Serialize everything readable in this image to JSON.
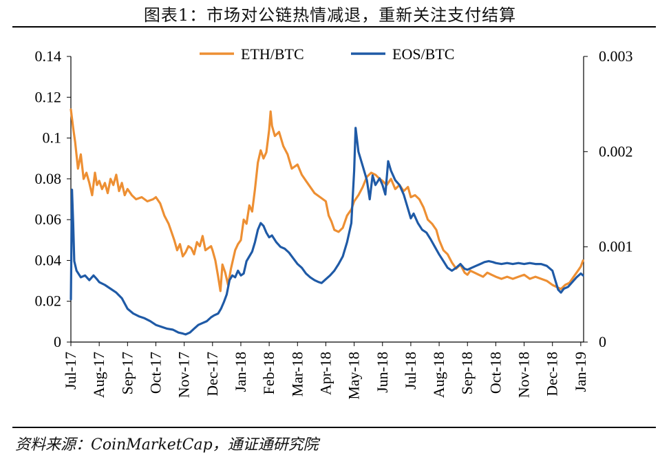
{
  "title": "图表1：市场对公链热情减退，重新关注支付结算",
  "source": "资料来源：CoinMarketCap，通证通研究院",
  "chart_data": {
    "type": "line",
    "x_tick_labels": [
      "Jul-17",
      "Aug-17",
      "Sep-17",
      "Oct-17",
      "Nov-17",
      "Dec-17",
      "Jan-18",
      "Feb-18",
      "Mar-18",
      "Apr-18",
      "May-18",
      "Jun-18",
      "Jul-18",
      "Aug-18",
      "Sep-18",
      "Oct-18",
      "Nov-18",
      "Dec-18",
      "Jan-19"
    ],
    "y_left": {
      "ylim": [
        0,
        0.14
      ],
      "ticks": [
        0,
        0.02,
        0.04,
        0.06,
        0.08,
        0.1,
        0.12,
        0.14
      ],
      "tick_labels": [
        "0",
        "0.02",
        "0.04",
        "0.06",
        "0.08",
        "0.1",
        "0.12",
        "0.14"
      ]
    },
    "y_right": {
      "ylim": [
        0,
        0.003
      ],
      "ticks": [
        0,
        0.001,
        0.002,
        0.003
      ],
      "tick_labels": [
        "0",
        "0.001",
        "0.002",
        "0.003"
      ]
    },
    "legend_position": "top-center",
    "grid": false,
    "series": [
      {
        "name": "ETH/BTC",
        "axis": "left",
        "color": "#ED8F33",
        "points": [
          [
            0.0,
            0.114
          ],
          [
            0.08,
            0.105
          ],
          [
            0.15,
            0.098
          ],
          [
            0.25,
            0.085
          ],
          [
            0.35,
            0.092
          ],
          [
            0.45,
            0.08
          ],
          [
            0.55,
            0.083
          ],
          [
            0.65,
            0.078
          ],
          [
            0.75,
            0.072
          ],
          [
            0.85,
            0.083
          ],
          [
            0.92,
            0.077
          ],
          [
            1.0,
            0.079
          ],
          [
            1.1,
            0.075
          ],
          [
            1.2,
            0.078
          ],
          [
            1.3,
            0.073
          ],
          [
            1.4,
            0.08
          ],
          [
            1.5,
            0.077
          ],
          [
            1.6,
            0.082
          ],
          [
            1.7,
            0.074
          ],
          [
            1.8,
            0.078
          ],
          [
            1.9,
            0.072
          ],
          [
            2.0,
            0.075
          ],
          [
            2.15,
            0.072
          ],
          [
            2.3,
            0.07
          ],
          [
            2.5,
            0.071
          ],
          [
            2.7,
            0.069
          ],
          [
            2.9,
            0.07
          ],
          [
            3.0,
            0.071
          ],
          [
            3.15,
            0.068
          ],
          [
            3.3,
            0.062
          ],
          [
            3.45,
            0.058
          ],
          [
            3.55,
            0.054
          ],
          [
            3.65,
            0.05
          ],
          [
            3.75,
            0.045
          ],
          [
            3.85,
            0.048
          ],
          [
            3.95,
            0.042
          ],
          [
            4.05,
            0.044
          ],
          [
            4.15,
            0.047
          ],
          [
            4.25,
            0.046
          ],
          [
            4.35,
            0.043
          ],
          [
            4.45,
            0.049
          ],
          [
            4.55,
            0.047
          ],
          [
            4.65,
            0.052
          ],
          [
            4.75,
            0.045
          ],
          [
            4.85,
            0.046
          ],
          [
            4.95,
            0.047
          ],
          [
            5.0,
            0.045
          ],
          [
            5.1,
            0.04
          ],
          [
            5.2,
            0.032
          ],
          [
            5.28,
            0.025
          ],
          [
            5.35,
            0.038
          ],
          [
            5.45,
            0.034
          ],
          [
            5.55,
            0.028
          ],
          [
            5.65,
            0.036
          ],
          [
            5.8,
            0.045
          ],
          [
            5.9,
            0.048
          ],
          [
            6.0,
            0.05
          ],
          [
            6.1,
            0.06
          ],
          [
            6.2,
            0.058
          ],
          [
            6.3,
            0.067
          ],
          [
            6.4,
            0.064
          ],
          [
            6.5,
            0.075
          ],
          [
            6.6,
            0.088
          ],
          [
            6.7,
            0.094
          ],
          [
            6.8,
            0.09
          ],
          [
            6.9,
            0.093
          ],
          [
            7.0,
            0.104
          ],
          [
            7.05,
            0.113
          ],
          [
            7.1,
            0.106
          ],
          [
            7.2,
            0.101
          ],
          [
            7.35,
            0.103
          ],
          [
            7.5,
            0.096
          ],
          [
            7.65,
            0.092
          ],
          [
            7.8,
            0.085
          ],
          [
            8.0,
            0.087
          ],
          [
            8.15,
            0.082
          ],
          [
            8.3,
            0.079
          ],
          [
            8.45,
            0.076
          ],
          [
            8.6,
            0.073
          ],
          [
            8.8,
            0.071
          ],
          [
            9.0,
            0.069
          ],
          [
            9.1,
            0.062
          ],
          [
            9.2,
            0.059
          ],
          [
            9.3,
            0.055
          ],
          [
            9.45,
            0.054
          ],
          [
            9.6,
            0.056
          ],
          [
            9.75,
            0.062
          ],
          [
            9.9,
            0.065
          ],
          [
            10.0,
            0.069
          ],
          [
            10.15,
            0.072
          ],
          [
            10.3,
            0.076
          ],
          [
            10.45,
            0.081
          ],
          [
            10.6,
            0.083
          ],
          [
            10.75,
            0.082
          ],
          [
            10.9,
            0.08
          ],
          [
            11.0,
            0.079
          ],
          [
            11.15,
            0.077
          ],
          [
            11.3,
            0.08
          ],
          [
            11.45,
            0.075
          ],
          [
            11.6,
            0.077
          ],
          [
            11.75,
            0.074
          ],
          [
            11.9,
            0.076
          ],
          [
            12.0,
            0.071
          ],
          [
            12.15,
            0.072
          ],
          [
            12.3,
            0.07
          ],
          [
            12.45,
            0.066
          ],
          [
            12.6,
            0.06
          ],
          [
            12.75,
            0.058
          ],
          [
            12.9,
            0.055
          ],
          [
            13.0,
            0.05
          ],
          [
            13.15,
            0.045
          ],
          [
            13.3,
            0.043
          ],
          [
            13.45,
            0.039
          ],
          [
            13.6,
            0.036
          ],
          [
            13.75,
            0.038
          ],
          [
            13.9,
            0.034
          ],
          [
            14.0,
            0.033
          ],
          [
            14.1,
            0.035
          ],
          [
            14.25,
            0.034
          ],
          [
            14.4,
            0.033
          ],
          [
            14.55,
            0.032
          ],
          [
            14.7,
            0.034
          ],
          [
            14.85,
            0.033
          ],
          [
            15.0,
            0.032
          ],
          [
            15.2,
            0.031
          ],
          [
            15.4,
            0.032
          ],
          [
            15.6,
            0.031
          ],
          [
            15.8,
            0.032
          ],
          [
            16.0,
            0.033
          ],
          [
            16.2,
            0.031
          ],
          [
            16.4,
            0.032
          ],
          [
            16.6,
            0.031
          ],
          [
            16.8,
            0.03
          ],
          [
            17.0,
            0.028
          ],
          [
            17.15,
            0.027
          ],
          [
            17.3,
            0.026
          ],
          [
            17.45,
            0.028
          ],
          [
            17.6,
            0.029
          ],
          [
            17.75,
            0.032
          ],
          [
            17.9,
            0.035
          ],
          [
            18.0,
            0.037
          ],
          [
            18.08,
            0.04
          ]
        ]
      },
      {
        "name": "EOS/BTC",
        "axis": "right",
        "color": "#1F5AA6",
        "points": [
          [
            0.0,
            0.00045
          ],
          [
            0.04,
            0.0016
          ],
          [
            0.08,
            0.00125
          ],
          [
            0.12,
            0.00085
          ],
          [
            0.2,
            0.00075
          ],
          [
            0.35,
            0.00068
          ],
          [
            0.5,
            0.0007
          ],
          [
            0.65,
            0.00065
          ],
          [
            0.8,
            0.0007
          ],
          [
            0.92,
            0.00066
          ],
          [
            1.0,
            0.00063
          ],
          [
            1.2,
            0.0006
          ],
          [
            1.4,
            0.00056
          ],
          [
            1.6,
            0.00052
          ],
          [
            1.8,
            0.00046
          ],
          [
            2.0,
            0.00035
          ],
          [
            2.2,
            0.0003
          ],
          [
            2.4,
            0.00027
          ],
          [
            2.6,
            0.00025
          ],
          [
            2.8,
            0.00022
          ],
          [
            3.0,
            0.00018
          ],
          [
            3.2,
            0.00016
          ],
          [
            3.4,
            0.00014
          ],
          [
            3.6,
            0.00013
          ],
          [
            3.8,
            0.0001
          ],
          [
            3.95,
            9e-05
          ],
          [
            4.05,
            8e-05
          ],
          [
            4.2,
            0.0001
          ],
          [
            4.35,
            0.00014
          ],
          [
            4.5,
            0.00018
          ],
          [
            4.65,
            0.0002
          ],
          [
            4.8,
            0.00022
          ],
          [
            4.95,
            0.00026
          ],
          [
            5.05,
            0.00028
          ],
          [
            5.2,
            0.0003
          ],
          [
            5.3,
            0.00035
          ],
          [
            5.4,
            0.00042
          ],
          [
            5.5,
            0.0005
          ],
          [
            5.6,
            0.00065
          ],
          [
            5.7,
            0.0007
          ],
          [
            5.8,
            0.00068
          ],
          [
            5.9,
            0.00075
          ],
          [
            6.0,
            0.0007
          ],
          [
            6.1,
            0.00072
          ],
          [
            6.2,
            0.00085
          ],
          [
            6.3,
            0.0009
          ],
          [
            6.4,
            0.00095
          ],
          [
            6.5,
            0.00105
          ],
          [
            6.6,
            0.00118
          ],
          [
            6.7,
            0.00125
          ],
          [
            6.8,
            0.00122
          ],
          [
            6.9,
            0.00115
          ],
          [
            7.0,
            0.0011
          ],
          [
            7.1,
            0.00112
          ],
          [
            7.25,
            0.00105
          ],
          [
            7.4,
            0.001
          ],
          [
            7.55,
            0.00098
          ],
          [
            7.7,
            0.00094
          ],
          [
            7.85,
            0.00088
          ],
          [
            8.0,
            0.00082
          ],
          [
            8.15,
            0.00078
          ],
          [
            8.3,
            0.00072
          ],
          [
            8.45,
            0.00068
          ],
          [
            8.6,
            0.00065
          ],
          [
            8.75,
            0.00063
          ],
          [
            8.85,
            0.00062
          ],
          [
            9.0,
            0.00066
          ],
          [
            9.15,
            0.0007
          ],
          [
            9.3,
            0.00075
          ],
          [
            9.45,
            0.00082
          ],
          [
            9.6,
            0.0009
          ],
          [
            9.75,
            0.00105
          ],
          [
            9.9,
            0.00125
          ],
          [
            10.0,
            0.0018
          ],
          [
            10.05,
            0.00225
          ],
          [
            10.15,
            0.002
          ],
          [
            10.3,
            0.00185
          ],
          [
            10.45,
            0.0017
          ],
          [
            10.55,
            0.0015
          ],
          [
            10.65,
            0.00175
          ],
          [
            10.75,
            0.00165
          ],
          [
            10.9,
            0.00172
          ],
          [
            11.0,
            0.00165
          ],
          [
            11.1,
            0.00155
          ],
          [
            11.2,
            0.0019
          ],
          [
            11.3,
            0.0018
          ],
          [
            11.45,
            0.0017
          ],
          [
            11.6,
            0.00165
          ],
          [
            11.75,
            0.00155
          ],
          [
            11.9,
            0.0014
          ],
          [
            12.0,
            0.0013
          ],
          [
            12.1,
            0.00135
          ],
          [
            12.25,
            0.00125
          ],
          [
            12.4,
            0.00118
          ],
          [
            12.55,
            0.00115
          ],
          [
            12.7,
            0.00108
          ],
          [
            12.85,
            0.001
          ],
          [
            13.0,
            0.00092
          ],
          [
            13.15,
            0.00085
          ],
          [
            13.3,
            0.00078
          ],
          [
            13.45,
            0.00075
          ],
          [
            13.6,
            0.00078
          ],
          [
            13.75,
            0.00082
          ],
          [
            13.9,
            0.00077
          ],
          [
            14.0,
            0.00076
          ],
          [
            14.15,
            0.00078
          ],
          [
            14.3,
            0.0008
          ],
          [
            14.45,
            0.00082
          ],
          [
            14.6,
            0.00084
          ],
          [
            14.75,
            0.00085
          ],
          [
            14.9,
            0.00084
          ],
          [
            15.0,
            0.00083
          ],
          [
            15.2,
            0.00082
          ],
          [
            15.4,
            0.00083
          ],
          [
            15.6,
            0.00082
          ],
          [
            15.8,
            0.00083
          ],
          [
            16.0,
            0.00082
          ],
          [
            16.2,
            0.00083
          ],
          [
            16.4,
            0.00082
          ],
          [
            16.6,
            0.00082
          ],
          [
            16.8,
            0.0008
          ],
          [
            17.0,
            0.00075
          ],
          [
            17.1,
            0.00065
          ],
          [
            17.2,
            0.00055
          ],
          [
            17.3,
            0.00052
          ],
          [
            17.4,
            0.00056
          ],
          [
            17.55,
            0.00058
          ],
          [
            17.7,
            0.00063
          ],
          [
            17.85,
            0.00068
          ],
          [
            18.0,
            0.00072
          ],
          [
            18.08,
            0.0007
          ]
        ]
      }
    ]
  }
}
